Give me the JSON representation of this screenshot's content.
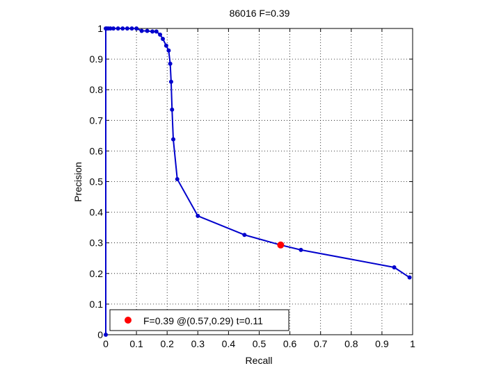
{
  "chart_data": {
    "type": "line",
    "title": "86016 F=0.39",
    "xlabel": "Recall",
    "ylabel": "Precision",
    "xlim": [
      0,
      1
    ],
    "ylim": [
      0,
      1
    ],
    "grid": true,
    "x_ticks": [
      "0",
      "0.1",
      "0.2",
      "0.3",
      "0.4",
      "0.5",
      "0.6",
      "0.7",
      "0.8",
      "0.9",
      "1"
    ],
    "y_ticks": [
      "0",
      "0.1",
      "0.2",
      "0.3",
      "0.4",
      "0.5",
      "0.6",
      "0.7",
      "0.8",
      "0.9",
      "1"
    ],
    "series": [
      {
        "color": "#0000cc",
        "points": [
          [
            0.0,
            0.0
          ],
          [
            0.0,
            1.0
          ],
          [
            0.003,
            1.0
          ],
          [
            0.008,
            1.0
          ],
          [
            0.015,
            1.0
          ],
          [
            0.025,
            1.0
          ],
          [
            0.04,
            1.0
          ],
          [
            0.055,
            1.0
          ],
          [
            0.07,
            1.0
          ],
          [
            0.085,
            1.0
          ],
          [
            0.1,
            1.0
          ],
          [
            0.117,
            0.992
          ],
          [
            0.135,
            0.992
          ],
          [
            0.152,
            0.99
          ],
          [
            0.165,
            0.99
          ],
          [
            0.177,
            0.98
          ],
          [
            0.186,
            0.966
          ],
          [
            0.197,
            0.944
          ],
          [
            0.205,
            0.928
          ],
          [
            0.21,
            0.885
          ],
          [
            0.213,
            0.826
          ],
          [
            0.216,
            0.735
          ],
          [
            0.22,
            0.638
          ],
          [
            0.233,
            0.508
          ],
          [
            0.3,
            0.388
          ],
          [
            0.452,
            0.326
          ],
          [
            0.57,
            0.293
          ],
          [
            0.636,
            0.277
          ],
          [
            0.94,
            0.22
          ],
          [
            0.99,
            0.187
          ]
        ]
      }
    ],
    "best_point": {
      "x": 0.57,
      "y": 0.293,
      "color": "#ff0000",
      "legend_label": "F=0.39 @(0.57,0.29) t=0.11"
    },
    "legend_placement": "bottom-left"
  }
}
